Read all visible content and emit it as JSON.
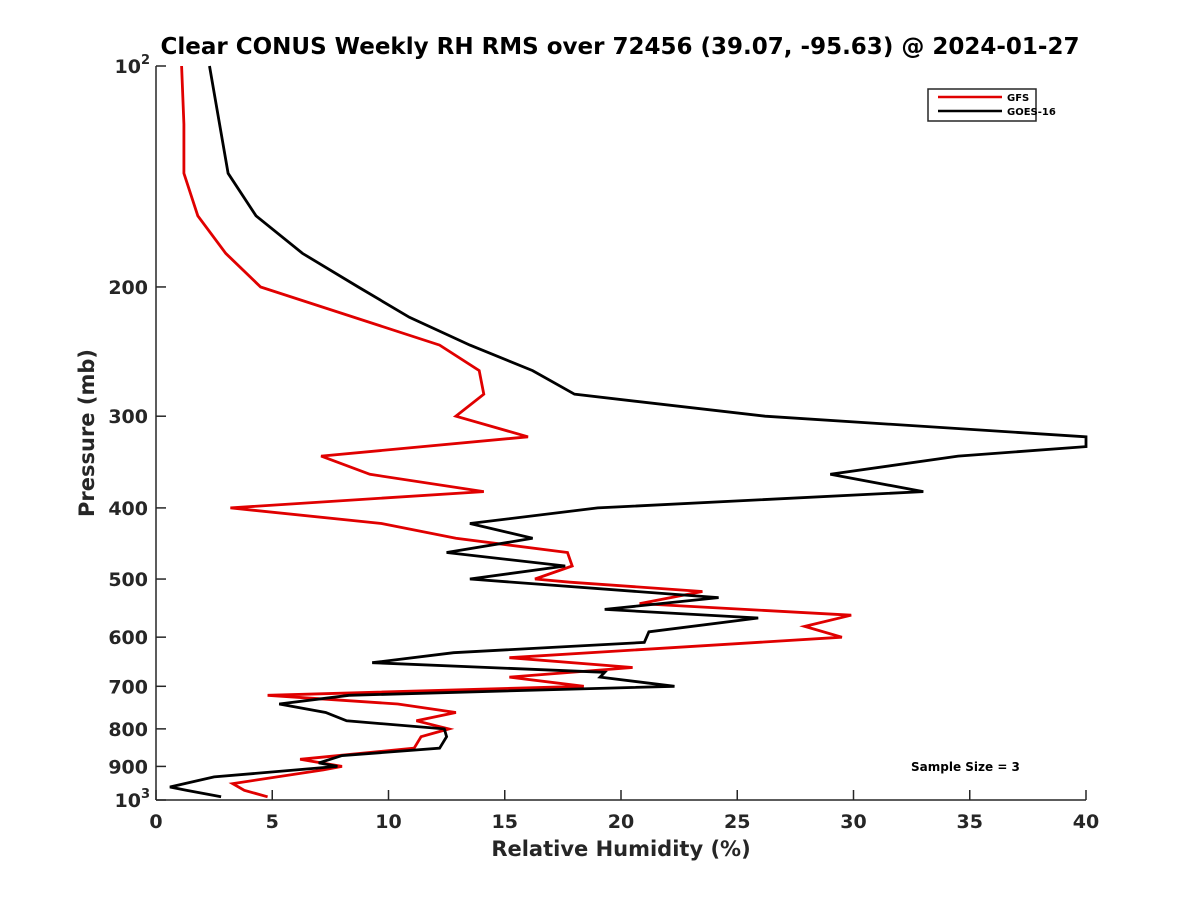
{
  "chart_data": {
    "type": "line",
    "title": "Clear CONUS Weekly RH RMS over 72456 (39.07, -95.63) @ 2024-01-27",
    "xlabel": "Relative Humidity (%)",
    "ylabel": "Pressure (mb)",
    "xlim": [
      0,
      40
    ],
    "ylim": [
      100,
      1000
    ],
    "yscale": "log",
    "yreversed": true,
    "grid": false,
    "xticks": [
      0,
      5,
      10,
      15,
      20,
      25,
      30,
      35,
      40
    ],
    "xtick_labels": [
      "0",
      "5",
      "10",
      "15",
      "20",
      "25",
      "30",
      "35",
      "40"
    ],
    "yticks": [
      100,
      200,
      300,
      400,
      500,
      600,
      700,
      800,
      900,
      1000
    ],
    "ytick_labels": [
      {
        "base": "10",
        "sup": "2"
      },
      {
        "base": "200",
        "sup": ""
      },
      {
        "base": "300",
        "sup": ""
      },
      {
        "base": "400",
        "sup": ""
      },
      {
        "base": "500",
        "sup": ""
      },
      {
        "base": "600",
        "sup": ""
      },
      {
        "base": "700",
        "sup": ""
      },
      {
        "base": "800",
        "sup": ""
      },
      {
        "base": "900",
        "sup": ""
      },
      {
        "base": "10",
        "sup": "3"
      }
    ],
    "legend": {
      "position": "top-right",
      "entries": [
        "GFS",
        "GOES-16"
      ]
    },
    "annotation": "Sample Size = 3",
    "series": [
      {
        "name": "GFS",
        "color": "#e00000",
        "points": [
          [
            1.1,
            100
          ],
          [
            1.2,
            120
          ],
          [
            1.2,
            140
          ],
          [
            1.8,
            160
          ],
          [
            3.0,
            180
          ],
          [
            4.5,
            200
          ],
          [
            12.2,
            240
          ],
          [
            13.9,
            260
          ],
          [
            14.1,
            280
          ],
          [
            12.9,
            300
          ],
          [
            16.0,
            320
          ],
          [
            7.1,
            340
          ],
          [
            9.2,
            360
          ],
          [
            14.1,
            380
          ],
          [
            3.2,
            400
          ],
          [
            9.7,
            420
          ],
          [
            12.9,
            440
          ],
          [
            17.7,
            460
          ],
          [
            17.9,
            480
          ],
          [
            16.3,
            500
          ],
          [
            17.8,
            505
          ],
          [
            23.5,
            520
          ],
          [
            20.8,
            540
          ],
          [
            29.9,
            560
          ],
          [
            27.9,
            580
          ],
          [
            29.5,
            600
          ],
          [
            15.2,
            640
          ],
          [
            20.5,
            660
          ],
          [
            15.2,
            680
          ],
          [
            18.4,
            700
          ],
          [
            4.8,
            720
          ],
          [
            10.4,
            740
          ],
          [
            12.9,
            760
          ],
          [
            11.2,
            780
          ],
          [
            12.6,
            800
          ],
          [
            11.4,
            820
          ],
          [
            11.1,
            850
          ],
          [
            6.2,
            880
          ],
          [
            8.0,
            900
          ],
          [
            7.2,
            910
          ],
          [
            3.3,
            950
          ],
          [
            3.8,
            970
          ],
          [
            4.8,
            990
          ]
        ]
      },
      {
        "name": "GOES-16",
        "color": "#000000",
        "points": [
          [
            2.3,
            100
          ],
          [
            3.1,
            140
          ],
          [
            4.3,
            160
          ],
          [
            6.3,
            180
          ],
          [
            8.7,
            200
          ],
          [
            10.9,
            220
          ],
          [
            13.5,
            240
          ],
          [
            16.2,
            260
          ],
          [
            18.0,
            280
          ],
          [
            26.2,
            300
          ],
          [
            40.0,
            320
          ],
          [
            40.0,
            330
          ],
          [
            34.5,
            340
          ],
          [
            29.0,
            360
          ],
          [
            33.0,
            380
          ],
          [
            19.0,
            400
          ],
          [
            13.5,
            420
          ],
          [
            16.2,
            440
          ],
          [
            12.5,
            460
          ],
          [
            17.6,
            480
          ],
          [
            13.5,
            500
          ],
          [
            24.2,
            530
          ],
          [
            19.3,
            550
          ],
          [
            25.9,
            565
          ],
          [
            21.2,
            590
          ],
          [
            21.0,
            610
          ],
          [
            12.8,
            630
          ],
          [
            9.3,
            650
          ],
          [
            19.3,
            670
          ],
          [
            19.1,
            680
          ],
          [
            22.3,
            700
          ],
          [
            8.3,
            720
          ],
          [
            5.3,
            740
          ],
          [
            7.3,
            760
          ],
          [
            8.2,
            780
          ],
          [
            12.4,
            800
          ],
          [
            12.5,
            820
          ],
          [
            12.2,
            850
          ],
          [
            8.0,
            870
          ],
          [
            7.0,
            890
          ],
          [
            7.8,
            900
          ],
          [
            2.5,
            930
          ],
          [
            0.6,
            960
          ],
          [
            1.3,
            970
          ],
          [
            2.8,
            990
          ]
        ]
      }
    ]
  }
}
